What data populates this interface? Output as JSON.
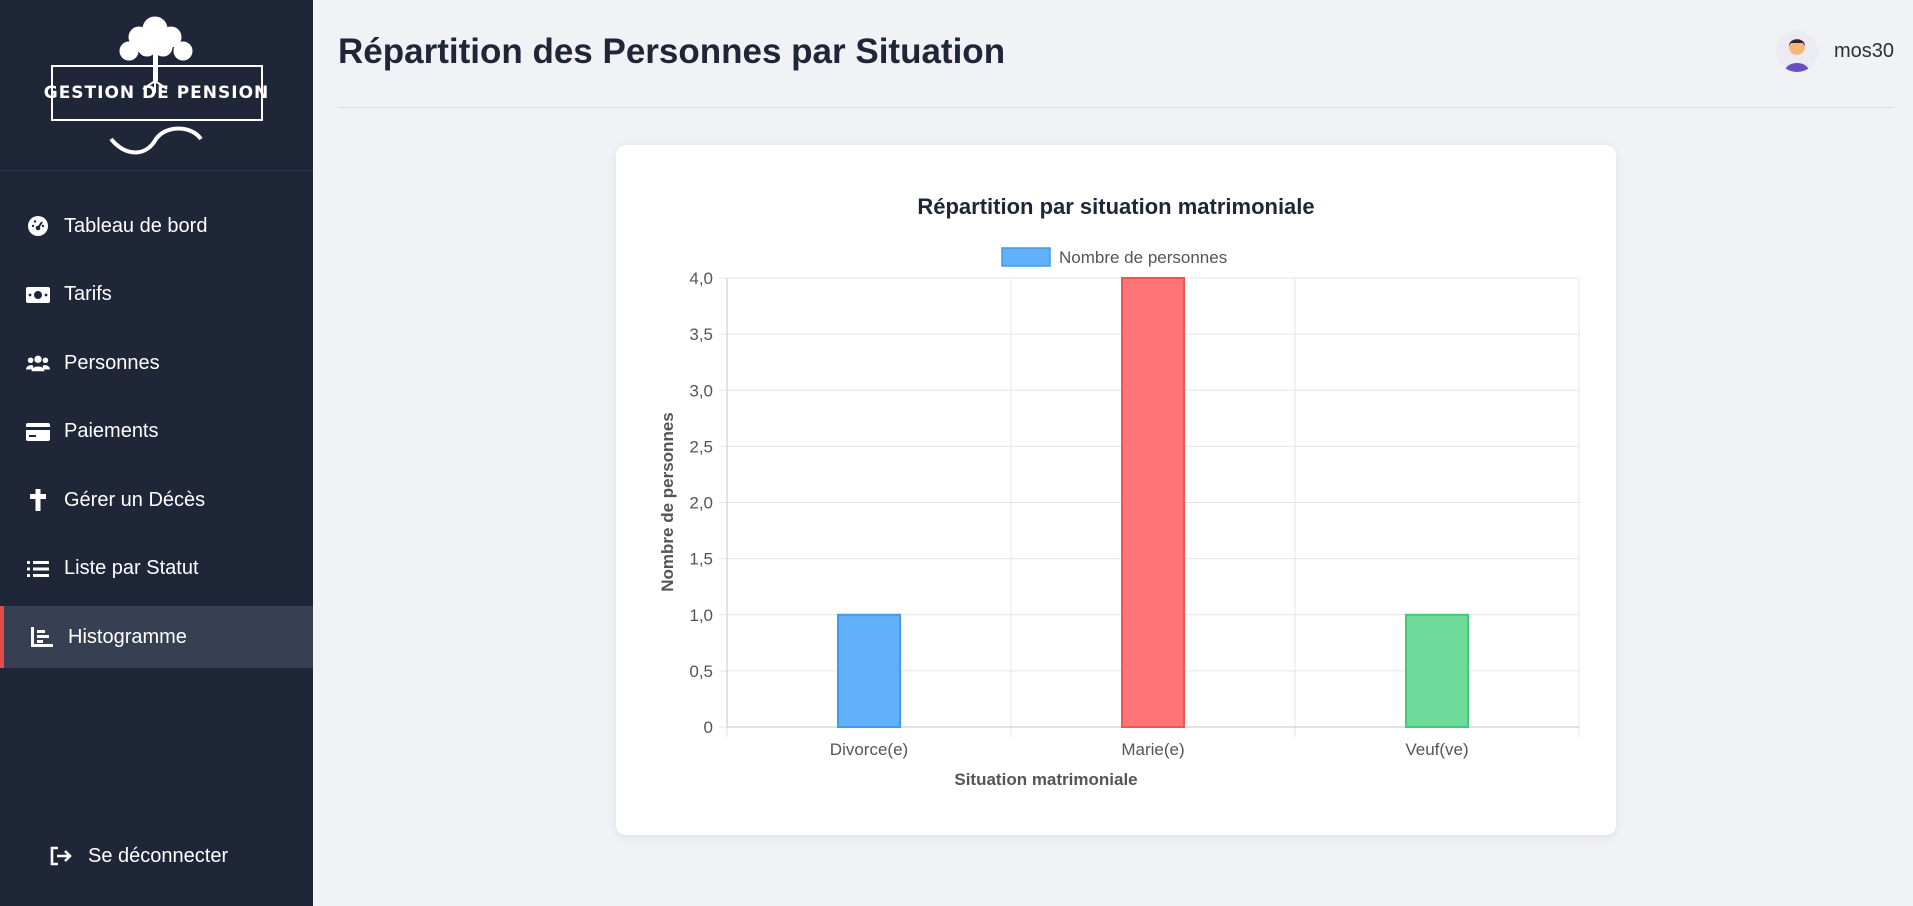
{
  "sidebar": {
    "logo_text": "GESTION DE PENSION",
    "items": [
      {
        "label": "Tableau de bord",
        "icon": "dashboard-icon"
      },
      {
        "label": "Tarifs",
        "icon": "money-icon"
      },
      {
        "label": "Personnes",
        "icon": "users-icon"
      },
      {
        "label": "Paiements",
        "icon": "credit-card-icon"
      },
      {
        "label": "Gérer un Décès",
        "icon": "cross-icon"
      },
      {
        "label": "Liste par Statut",
        "icon": "list-icon"
      },
      {
        "label": "Histogramme",
        "icon": "chart-bar-icon",
        "active": true
      }
    ],
    "logout_label": "Se déconnecter"
  },
  "header": {
    "title": "Répartition des Personnes par Situation",
    "username": "mos30"
  },
  "colors": {
    "sidebar_bg": "#1e2638",
    "active_accent": "#e64a4a",
    "bar_blue": "#62b0fa",
    "bar_red": "#ff7474",
    "bar_green": "#6fdb9a"
  },
  "chart_data": {
    "type": "bar",
    "title": "Répartition par situation matrimoniale",
    "categories": [
      "Divorce(e)",
      "Marie(e)",
      "Veuf(ve)"
    ],
    "series": [
      {
        "name": "Nombre de personnes",
        "values": [
          1,
          4,
          1
        ]
      }
    ],
    "bar_colors": [
      "#62b0fa",
      "#ff7474",
      "#6fdb9a"
    ],
    "bar_borders": [
      "#3f9bf0",
      "#f05555",
      "#43c878"
    ],
    "xlabel": "Situation matrimoniale",
    "ylabel": "Nombre de personnes",
    "ylim": [
      0,
      4
    ],
    "yticks": [
      "0",
      "0,5",
      "1,0",
      "1,5",
      "2,0",
      "2,5",
      "3,0",
      "3,5",
      "4,0"
    ],
    "grid": true,
    "legend": "top"
  }
}
